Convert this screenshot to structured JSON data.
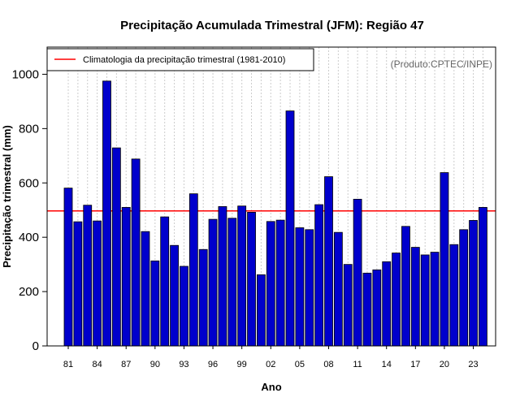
{
  "chart_data": {
    "type": "bar",
    "title": "Precipitação Acumulada Trimestral (JFM): Região 47",
    "xlabel": "Ano",
    "ylabel": "Precipitação trimestral (mm)",
    "credit": "(Produto:CPTEC/INPE)",
    "legend": {
      "label": "Climatologia da precipitação trimestral (1981-2010)",
      "position": "top-left",
      "color": "#ff0000"
    },
    "bar_color": "#0000cc",
    "ylim": [
      0,
      1100
    ],
    "yticks": [
      0,
      200,
      400,
      600,
      800,
      1000
    ],
    "reference_line": {
      "name": "Climatologia",
      "value": 497
    },
    "categories": [
      "1981",
      "1982",
      "1983",
      "1984",
      "1985",
      "1986",
      "1987",
      "1988",
      "1989",
      "1990",
      "1991",
      "1992",
      "1993",
      "1994",
      "1995",
      "1996",
      "1997",
      "1998",
      "1999",
      "2000",
      "2001",
      "2002",
      "2003",
      "2004",
      "2005",
      "2006",
      "2007",
      "2008",
      "2009",
      "2010",
      "2011",
      "2012",
      "2013",
      "2014",
      "2015",
      "2016",
      "2017",
      "2018",
      "2019",
      "2020",
      "2021",
      "2022",
      "2023",
      "2024"
    ],
    "xtick_labels": [
      {
        "index": 0,
        "label": "81"
      },
      {
        "index": 3,
        "label": "84"
      },
      {
        "index": 6,
        "label": "87"
      },
      {
        "index": 9,
        "label": "90"
      },
      {
        "index": 12,
        "label": "93"
      },
      {
        "index": 15,
        "label": "96"
      },
      {
        "index": 18,
        "label": "99"
      },
      {
        "index": 21,
        "label": "02"
      },
      {
        "index": 24,
        "label": "05"
      },
      {
        "index": 27,
        "label": "08"
      },
      {
        "index": 30,
        "label": "11"
      },
      {
        "index": 33,
        "label": "14"
      },
      {
        "index": 36,
        "label": "17"
      },
      {
        "index": 39,
        "label": "20"
      },
      {
        "index": 42,
        "label": "23"
      }
    ],
    "values": [
      581,
      457,
      518,
      460,
      975,
      729,
      510,
      688,
      421,
      313,
      475,
      370,
      293,
      560,
      355,
      466,
      513,
      470,
      515,
      492,
      262,
      458,
      463,
      865,
      435,
      428,
      520,
      623,
      418,
      300,
      540,
      268,
      280,
      310,
      342,
      440,
      363,
      335,
      345,
      638,
      373,
      428,
      462,
      510
    ]
  }
}
